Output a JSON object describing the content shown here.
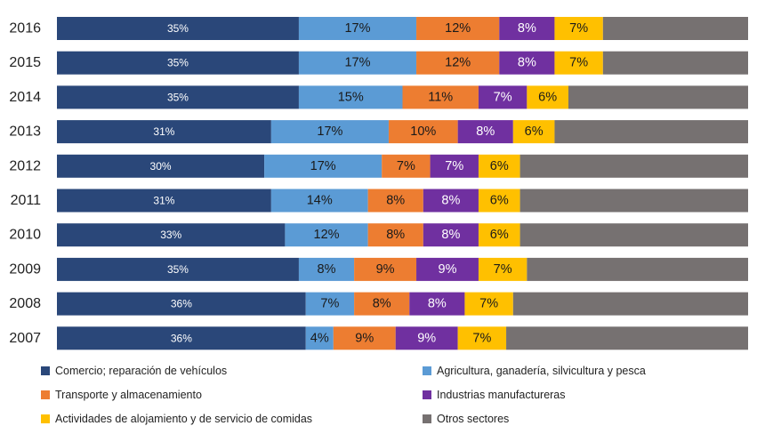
{
  "chart_data": {
    "type": "bar",
    "orientation": "horizontal",
    "stacked": true,
    "categories": [
      "2016",
      "2015",
      "2014",
      "2013",
      "2012",
      "2011",
      "2010",
      "2009",
      "2008",
      "2007"
    ],
    "series": [
      {
        "name": "Comercio; reparación de vehículos",
        "color": "#2a4779",
        "values": [
          35,
          35,
          35,
          31,
          30,
          31,
          33,
          35,
          36,
          36
        ],
        "labels": [
          "35%",
          "35%",
          "35%",
          "31%",
          "30%",
          "31%",
          "33%",
          "35%",
          "36%",
          "36%"
        ]
      },
      {
        "name": "Agricultura, ganadería, silvicultura y pesca",
        "color": "#5b9bd5",
        "values": [
          17,
          17,
          15,
          17,
          17,
          14,
          12,
          8,
          7,
          4
        ],
        "labels": [
          "17%",
          "17%",
          "15%",
          "17%",
          "17%",
          "14%",
          "12%",
          "8%",
          "7%",
          "4%"
        ]
      },
      {
        "name": "Transporte y almacenamiento",
        "color": "#ed7d31",
        "values": [
          12,
          12,
          11,
          10,
          7,
          8,
          8,
          9,
          8,
          9
        ],
        "labels": [
          "12%",
          "12%",
          "11%",
          "10%",
          "7%",
          "8%",
          "8%",
          "9%",
          "8%",
          "9%"
        ]
      },
      {
        "name": "Industrias manufactureras",
        "color": "#7030a0",
        "values": [
          8,
          8,
          7,
          8,
          7,
          8,
          8,
          9,
          8,
          9
        ],
        "labels": [
          "8%",
          "8%",
          "7%",
          "8%",
          "7%",
          "8%",
          "8%",
          "9%",
          "8%",
          "9%"
        ]
      },
      {
        "name": "Actividades de alojamiento y de servicio de comidas",
        "color": "#ffc000",
        "values": [
          7,
          7,
          6,
          6,
          6,
          6,
          6,
          7,
          7,
          7
        ],
        "labels": [
          "7%",
          "7%",
          "6%",
          "6%",
          "6%",
          "6%",
          "6%",
          "7%",
          "7%",
          "7%"
        ]
      },
      {
        "name": "Otros sectores",
        "color": "#767171",
        "values": [
          21,
          21,
          26,
          28,
          33,
          33,
          33,
          32,
          34,
          35
        ],
        "labels": [
          "",
          "",
          "",
          "",
          "",
          "",
          "",
          "",
          "",
          ""
        ]
      }
    ],
    "xlim": [
      0,
      100
    ],
    "grid": false,
    "legend_position": "bottom"
  },
  "legend": [
    {
      "label": "Comercio; reparación de vehículos",
      "color": "#2a4779"
    },
    {
      "label": "Agricultura, ganadería, silvicultura y pesca",
      "color": "#5b9bd5"
    },
    {
      "label": "Transporte y almacenamiento",
      "color": "#ed7d31"
    },
    {
      "label": "Industrias manufactureras",
      "color": "#7030a0"
    },
    {
      "label": "Actividades de alojamiento y de servicio de comidas",
      "color": "#ffc000"
    },
    {
      "label": "Otros sectores",
      "color": "#767171"
    }
  ]
}
